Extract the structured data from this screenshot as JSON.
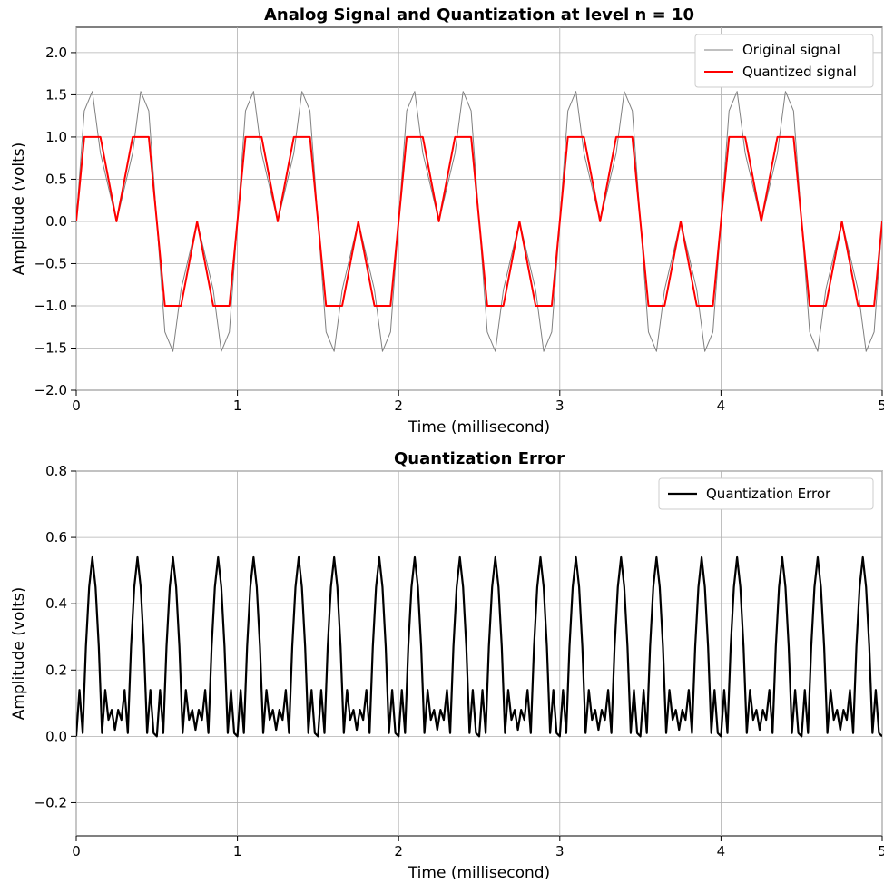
{
  "figure": {
    "chart_data": [
      {
        "type": "line",
        "title": "Analog Signal and Quantization at level n = 10",
        "xlabel": "Time (millisecond)",
        "ylabel": "Amplitude (volts)",
        "xlim": [
          0,
          5
        ],
        "ylim": [
          -2.0,
          2.3
        ],
        "x_ticks": [
          0,
          1,
          2,
          3,
          4,
          5
        ],
        "y_ticks": [
          -2.0,
          -1.5,
          -1.0,
          -0.5,
          0.0,
          0.5,
          1.0,
          1.5,
          2.0
        ],
        "x_tick_labels": [
          "0",
          "1",
          "2",
          "3",
          "4",
          "5"
        ],
        "y_tick_labels": [
          "−2.0",
          "−1.5",
          "−1.0",
          "−0.5",
          "0.0",
          "0.5",
          "1.0",
          "1.5",
          "2.0"
        ],
        "grid": true,
        "legend_position": "top-right",
        "series": [
          {
            "name": "Original signal",
            "color": "#808080",
            "x": [
              0,
              0.05,
              0.1,
              0.15,
              0.25,
              0.35,
              0.4,
              0.45,
              0.5,
              0.55,
              0.6,
              0.65,
              0.75,
              0.85,
              0.9,
              0.95,
              1.0
            ],
            "y": [
              0,
              1.31,
              1.54,
              0.81,
              0.0,
              0.81,
              1.54,
              1.31,
              0,
              -1.31,
              -1.54,
              -0.81,
              0.0,
              -0.81,
              -1.54,
              -1.31,
              0
            ],
            "period": 1.0
          },
          {
            "name": "Quantized signal",
            "color": "#ff0000",
            "x": [
              0,
              0.05,
              0.15,
              0.2,
              0.25,
              0.3,
              0.35,
              0.45,
              0.5,
              0.55,
              0.65,
              0.7,
              0.75,
              0.8,
              0.85,
              0.95,
              1.0
            ],
            "y": [
              0,
              1.0,
              1.0,
              0.5,
              0.0,
              0.5,
              1.0,
              1.0,
              0,
              -1.0,
              -1.0,
              -0.5,
              0.0,
              -0.5,
              -1.0,
              -1.0,
              0
            ],
            "period": 1.0
          }
        ]
      },
      {
        "type": "line",
        "title": "Quantization Error",
        "xlabel": "Time (millisecond)",
        "ylabel": "Amplitude (volts)",
        "xlim": [
          0,
          5
        ],
        "ylim": [
          -0.3,
          0.8
        ],
        "x_ticks": [
          0,
          1,
          2,
          3,
          4,
          5
        ],
        "y_ticks": [
          -0.2,
          0.0,
          0.2,
          0.4,
          0.6,
          0.8
        ],
        "x_tick_labels": [
          "0",
          "1",
          "2",
          "3",
          "4",
          "5"
        ],
        "y_tick_labels": [
          "−0.2",
          "0.0",
          "0.2",
          "0.4",
          "0.6",
          "0.8"
        ],
        "grid": true,
        "legend_position": "top-right",
        "series": [
          {
            "name": "Quantization Error",
            "color": "#000000",
            "x": [
              0,
              0.02,
              0.04,
              0.06,
              0.08,
              0.1,
              0.12,
              0.14,
              0.16,
              0.18,
              0.2,
              0.22,
              0.24,
              0.26,
              0.28,
              0.3,
              0.32,
              0.34,
              0.36,
              0.38,
              0.4,
              0.42,
              0.44,
              0.46,
              0.48,
              0.5
            ],
            "y": [
              0,
              0.14,
              0.01,
              0.27,
              0.45,
              0.54,
              0.45,
              0.27,
              0.01,
              0.14,
              0.05,
              0.08,
              0.02,
              0.08,
              0.05,
              0.14,
              0.01,
              0.27,
              0.45,
              0.54,
              0.45,
              0.27,
              0.01,
              0.14,
              0.01,
              0
            ],
            "period": 0.5
          }
        ]
      }
    ]
  }
}
